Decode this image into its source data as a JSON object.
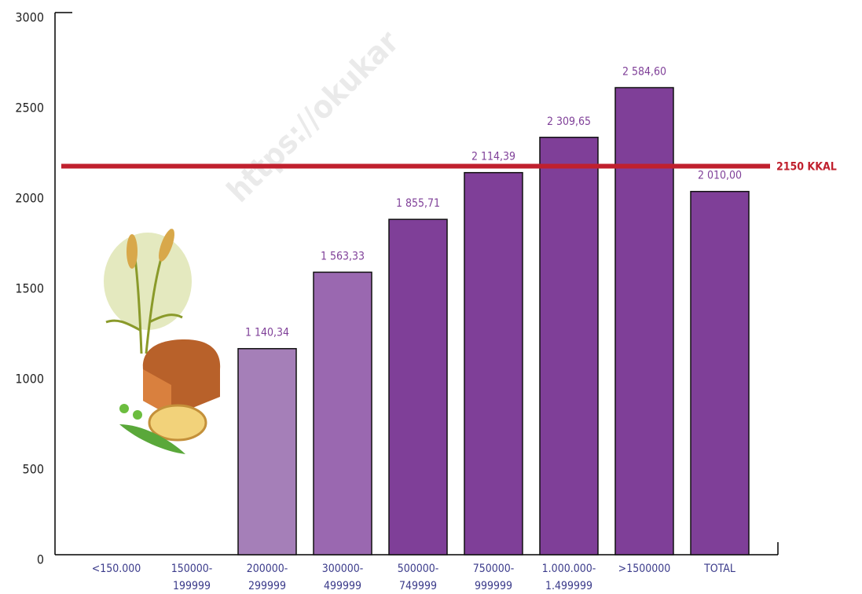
{
  "chart_data": {
    "type": "bar",
    "categories": [
      "<150.000",
      "150000-\n199999",
      "200000-\n299999",
      "300000-\n499999",
      "500000-\n749999",
      "750000-\n999999",
      "1.000.000-\n1.499999",
      ">1500000",
      "TOTAL"
    ],
    "values": [
      null,
      null,
      1140.34,
      1563.33,
      1855.71,
      2114.39,
      2309.65,
      2584.6,
      2010.0
    ],
    "value_labels": [
      null,
      null,
      "1 140,34",
      "1 563,33",
      "1 855,71",
      "2 114,39",
      "2 309,65",
      "2 584,60",
      "2 010,00"
    ],
    "colors": [
      "#7f3f98",
      "#7f3f98",
      "#a57fb8",
      "#9a68b0",
      "#7f3f98",
      "#7f3f98",
      "#7f3f98",
      "#7f3f98",
      "#7f3f98"
    ],
    "ylim": [
      0,
      3000
    ],
    "yticks": [
      0,
      500,
      1000,
      1500,
      2000,
      2500,
      3000
    ],
    "reference_line": {
      "value": 2150,
      "label": "2150 KKAL",
      "color": "#c0202e"
    },
    "watermark": "https://okukar"
  }
}
